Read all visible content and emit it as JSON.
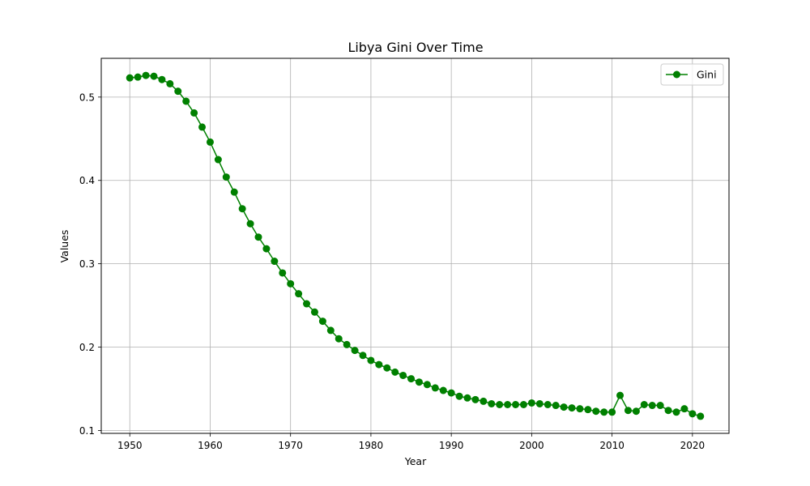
{
  "chart_data": {
    "type": "line",
    "title": "Libya Gini Over Time",
    "xlabel": "Year",
    "ylabel": "Values",
    "xlim": [
      1946.45,
      2024.55
    ],
    "ylim": [
      0.0965,
      0.5465
    ],
    "xticks": [
      1950,
      1960,
      1970,
      1980,
      1990,
      2000,
      2010,
      2020
    ],
    "yticks": [
      0.1,
      0.2,
      0.3,
      0.4,
      0.5
    ],
    "ytick_labels": [
      "0.1",
      "0.2",
      "0.3",
      "0.4",
      "0.5"
    ],
    "grid": true,
    "legend_position": "top-right",
    "series": [
      {
        "name": "Gini",
        "color": "#008000",
        "marker": "circle",
        "x": [
          1950,
          1951,
          1952,
          1953,
          1954,
          1955,
          1956,
          1957,
          1958,
          1959,
          1960,
          1961,
          1962,
          1963,
          1964,
          1965,
          1966,
          1967,
          1968,
          1969,
          1970,
          1971,
          1972,
          1973,
          1974,
          1975,
          1976,
          1977,
          1978,
          1979,
          1980,
          1981,
          1982,
          1983,
          1984,
          1985,
          1986,
          1987,
          1988,
          1989,
          1990,
          1991,
          1992,
          1993,
          1994,
          1995,
          1996,
          1997,
          1998,
          1999,
          2000,
          2001,
          2002,
          2003,
          2004,
          2005,
          2006,
          2007,
          2008,
          2009,
          2010,
          2011,
          2012,
          2013,
          2014,
          2015,
          2016,
          2017,
          2018,
          2019,
          2020,
          2021
        ],
        "values": [
          0.523,
          0.524,
          0.526,
          0.525,
          0.521,
          0.516,
          0.507,
          0.495,
          0.481,
          0.464,
          0.446,
          0.425,
          0.404,
          0.386,
          0.366,
          0.348,
          0.332,
          0.318,
          0.303,
          0.289,
          0.276,
          0.264,
          0.252,
          0.242,
          0.231,
          0.22,
          0.21,
          0.203,
          0.196,
          0.19,
          0.184,
          0.179,
          0.175,
          0.17,
          0.166,
          0.162,
          0.158,
          0.155,
          0.151,
          0.148,
          0.145,
          0.141,
          0.139,
          0.137,
          0.135,
          0.132,
          0.131,
          0.131,
          0.131,
          0.131,
          0.133,
          0.132,
          0.131,
          0.13,
          0.128,
          0.127,
          0.126,
          0.125,
          0.123,
          0.122,
          0.122,
          0.142,
          0.124,
          0.123,
          0.131,
          0.13,
          0.13,
          0.124,
          0.122,
          0.126,
          0.12,
          0.117
        ]
      }
    ]
  }
}
